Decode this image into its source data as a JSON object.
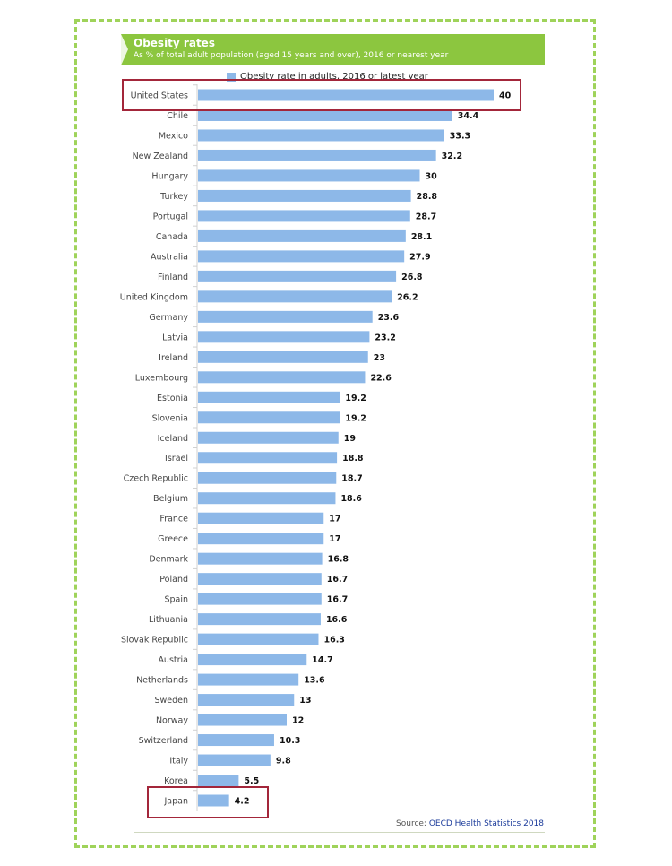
{
  "header": {
    "title": "Obesity rates",
    "subtitle": "As % of total adult population (aged 15 years and over), 2016 or nearest year"
  },
  "source": {
    "prefix": "Source: ",
    "link": "OECD Health Statistics 2018"
  },
  "highlighted": [
    "United States",
    "Japan"
  ],
  "colors": {
    "bar": "#8db8e8",
    "header": "#8cc63f",
    "highlight": "#a3263a",
    "frame": "#9fd35a"
  },
  "chart_data": {
    "type": "bar",
    "orientation": "horizontal",
    "legend": "Obesity rate in adults, 2016 or latest year",
    "legend_position": "top",
    "categories": [
      "United States",
      "Chile",
      "Mexico",
      "New Zealand",
      "Hungary",
      "Turkey",
      "Portugal",
      "Canada",
      "Australia",
      "Finland",
      "United Kingdom",
      "Germany",
      "Latvia",
      "Ireland",
      "Luxembourg",
      "Estonia",
      "Slovenia",
      "Iceland",
      "Israel",
      "Czech Republic",
      "Belgium",
      "France",
      "Greece",
      "Denmark",
      "Poland",
      "Spain",
      "Lithuania",
      "Slovak Republic",
      "Austria",
      "Netherlands",
      "Sweden",
      "Norway",
      "Switzerland",
      "Italy",
      "Korea",
      "Japan"
    ],
    "values": [
      40,
      34.4,
      33.3,
      32.2,
      30,
      28.8,
      28.7,
      28.1,
      27.9,
      26.8,
      26.2,
      23.6,
      23.2,
      23,
      22.6,
      19.2,
      19.2,
      19,
      18.8,
      18.7,
      18.6,
      17,
      17,
      16.8,
      16.7,
      16.7,
      16.6,
      16.3,
      14.7,
      13.6,
      13,
      12,
      10.3,
      9.8,
      5.5,
      4.2
    ],
    "xlim": [
      0,
      40
    ],
    "grid": false
  }
}
